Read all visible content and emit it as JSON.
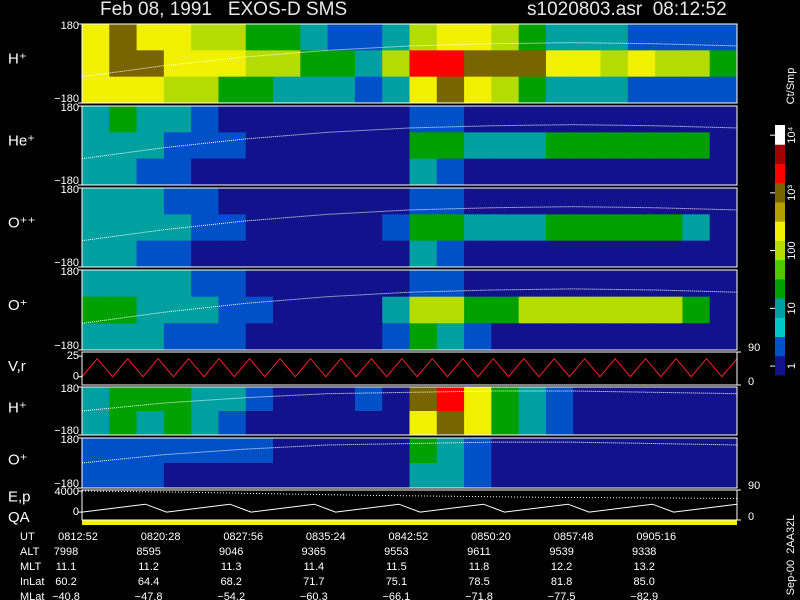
{
  "chart_data": {
    "type": "spectrogram",
    "title": "Feb 08, 1991   EXOS-D SMS",
    "subtitle": "s1020803.asr  08:12:52",
    "colorbar_label": "Ct/Smp",
    "footer_code": "Sep-00  2AA32L",
    "log": true,
    "clim": [
      0.7,
      15000
    ],
    "cticks": [
      1,
      10,
      100,
      {
        "value": 1000,
        "label": "10³"
      },
      {
        "value": 10000,
        "label": "10⁴"
      }
    ],
    "colormap": [
      "#12128c",
      "#0050c8",
      "#00c8c8",
      "#00a0a0",
      "#00a000",
      "#50c800",
      "#b4dc00",
      "#f0f000",
      "#b4a000",
      "#786400",
      "#ff0000",
      "#a00000",
      "#ffffff"
    ],
    "panels": [
      {
        "type": "heatmap",
        "label": "H⁺",
        "ylim": [
          -180,
          180
        ],
        "yticks": [
          {
            "value": -180,
            "label": "−180"
          },
          180
        ],
        "values": [
          [
            300,
            1000,
            300,
            300,
            100,
            100,
            30,
            30,
            10,
            3,
            3,
            10,
            100,
            300,
            300,
            100,
            30,
            10,
            10,
            10,
            3,
            3,
            3,
            3
          ],
          [
            300,
            1000,
            1000,
            300,
            300,
            300,
            100,
            100,
            30,
            30,
            10,
            100,
            3000,
            3000,
            1000,
            1000,
            1000,
            300,
            300,
            100,
            300,
            100,
            100,
            30
          ],
          [
            300,
            300,
            300,
            100,
            100,
            30,
            30,
            10,
            10,
            10,
            3,
            10,
            300,
            1000,
            300,
            100,
            30,
            10,
            10,
            10,
            3,
            3,
            3,
            3
          ]
        ],
        "curve": [
          -60,
          -10,
          30,
          60,
          80,
          90,
          95,
          90,
          80
        ]
      },
      {
        "type": "heatmap",
        "label": "He⁺",
        "ylim": [
          -180,
          180
        ],
        "yticks": [
          {
            "value": -180,
            "label": "−180"
          },
          180
        ],
        "values": [
          [
            10,
            30,
            10,
            10,
            3,
            1,
            1,
            1,
            1,
            1,
            1,
            1,
            3,
            3,
            1,
            1,
            1,
            1,
            1,
            1,
            1,
            1,
            1,
            1
          ],
          [
            10,
            10,
            10,
            3,
            3,
            3,
            1,
            1,
            1,
            1,
            1,
            1,
            30,
            30,
            10,
            10,
            10,
            30,
            30,
            30,
            30,
            30,
            30,
            1
          ],
          [
            10,
            10,
            3,
            3,
            1,
            1,
            1,
            1,
            1,
            1,
            1,
            1,
            10,
            3,
            1,
            1,
            1,
            1,
            1,
            1,
            1,
            1,
            1,
            1
          ]
        ],
        "curve": [
          -60,
          -10,
          30,
          60,
          80,
          90,
          95,
          90,
          80
        ]
      },
      {
        "type": "heatmap",
        "label": "O⁺⁺",
        "ylim": [
          -180,
          180
        ],
        "yticks": [
          {
            "value": -180,
            "label": "−180"
          },
          180
        ],
        "values": [
          [
            10,
            10,
            10,
            3,
            3,
            1,
            1,
            1,
            1,
            1,
            1,
            1,
            3,
            3,
            1,
            1,
            1,
            1,
            1,
            1,
            1,
            1,
            1,
            1
          ],
          [
            10,
            10,
            10,
            10,
            3,
            3,
            1,
            1,
            1,
            1,
            1,
            3,
            30,
            30,
            10,
            10,
            10,
            30,
            30,
            30,
            30,
            30,
            10,
            1
          ],
          [
            10,
            10,
            3,
            3,
            1,
            1,
            1,
            1,
            1,
            1,
            1,
            1,
            10,
            3,
            1,
            1,
            1,
            1,
            1,
            1,
            1,
            1,
            1,
            1
          ]
        ],
        "curve": [
          -60,
          -10,
          30,
          60,
          80,
          90,
          95,
          90,
          80
        ]
      },
      {
        "type": "heatmap",
        "label": "O⁺",
        "ylim": [
          -180,
          180
        ],
        "yticks": [
          {
            "value": -180,
            "label": "−180"
          },
          180
        ],
        "values": [
          [
            10,
            10,
            10,
            10,
            3,
            3,
            1,
            1,
            1,
            1,
            1,
            1,
            3,
            3,
            1,
            1,
            1,
            1,
            1,
            1,
            1,
            1,
            1,
            1
          ],
          [
            30,
            30,
            10,
            10,
            10,
            3,
            3,
            1,
            1,
            1,
            1,
            10,
            100,
            100,
            30,
            30,
            100,
            100,
            100,
            100,
            100,
            100,
            30,
            1
          ],
          [
            10,
            10,
            10,
            3,
            3,
            3,
            1,
            1,
            1,
            1,
            1,
            3,
            30,
            10,
            3,
            1,
            1,
            1,
            1,
            1,
            1,
            1,
            1,
            1
          ]
        ],
        "curve": [
          -60,
          -10,
          30,
          60,
          80,
          90,
          95,
          90,
          80
        ]
      },
      {
        "type": "line",
        "label": "V,r",
        "ylim": [
          -10,
          30
        ],
        "yticks": [
          0,
          25
        ],
        "y2lim": [
          0,
          90
        ],
        "y2ticks": [
          0,
          90
        ],
        "color": "#ff2020",
        "values": [
          0,
          22,
          0,
          22,
          0,
          22,
          0,
          22,
          0,
          22,
          0,
          22,
          0,
          22,
          0,
          22,
          0,
          22,
          0,
          22,
          0,
          22,
          0,
          22,
          0,
          22,
          0,
          22,
          0,
          22,
          0,
          22,
          0,
          22,
          0,
          22,
          0,
          22,
          0,
          22,
          0,
          22,
          0,
          22
        ]
      },
      {
        "type": "heatmap",
        "label": "H⁺",
        "ylim": [
          -180,
          180
        ],
        "yticks": [
          {
            "value": -180,
            "label": "−180"
          },
          180
        ],
        "values": [
          [
            10,
            30,
            30,
            30,
            10,
            10,
            3,
            1,
            1,
            1,
            3,
            1,
            1000,
            3000,
            300,
            30,
            10,
            3,
            1,
            1,
            1,
            1,
            1,
            1
          ],
          [
            10,
            30,
            10,
            30,
            10,
            3,
            1,
            1,
            1,
            1,
            1,
            1,
            300,
            1000,
            300,
            30,
            10,
            3,
            1,
            1,
            1,
            1,
            1,
            1
          ]
        ],
        "curve": [
          0,
          60,
          100,
          130,
          140,
          150,
          150,
          140,
          130
        ]
      },
      {
        "type": "heatmap",
        "label": "O⁺",
        "ylim": [
          -180,
          180
        ],
        "yticks": [
          {
            "value": -180,
            "label": "−180"
          },
          180
        ],
        "values": [
          [
            3,
            3,
            3,
            3,
            3,
            3,
            3,
            1,
            1,
            1,
            1,
            1,
            30,
            10,
            3,
            1,
            1,
            1,
            1,
            1,
            1,
            1,
            1,
            1
          ],
          [
            3,
            3,
            3,
            1,
            1,
            1,
            1,
            1,
            1,
            1,
            1,
            1,
            10,
            10,
            3,
            1,
            1,
            1,
            1,
            1,
            1,
            1,
            1,
            1
          ]
        ],
        "curve": [
          0,
          60,
          100,
          130,
          140,
          150,
          150,
          140,
          130
        ]
      },
      {
        "type": "line",
        "label": "E,p",
        "label2": "QA",
        "ylim": [
          -1500,
          4200
        ],
        "yticks": [
          0,
          4000
        ],
        "y2lim": [
          0,
          90
        ],
        "y2ticks": [
          0,
          90
        ],
        "color": "#ffffff",
        "values": [
          0,
          500,
          1000,
          1500,
          0,
          500,
          1000,
          1500,
          0,
          500,
          1000,
          1500,
          0,
          500,
          1000,
          1500,
          0,
          500,
          1000,
          1500,
          0,
          500,
          1000,
          1500,
          0,
          500,
          1000,
          1500,
          0,
          500,
          1000,
          1500
        ],
        "values2": [
          4000,
          3800,
          3500,
          3200,
          3000,
          2800,
          2700,
          2600
        ]
      }
    ],
    "ephemeris": {
      "labels": [
        "UT",
        "ALT",
        "MLT",
        "InLat",
        "MLat"
      ],
      "rows": [
        [
          "0812:52",
          "0820:28",
          "0827:56",
          "0835:24",
          "0842:52",
          "0850:20",
          "0857:48",
          "0905:16"
        ],
        [
          "7998",
          "8595",
          "9046",
          "9365",
          "9553",
          "9611",
          "9539",
          "9338"
        ],
        [
          "11.1",
          "11.2",
          "11.3",
          "11.4",
          "11.5",
          "11.8",
          "12.2",
          "13.2"
        ],
        [
          "60.2",
          "64.4",
          "68.2",
          "71.7",
          "75.1",
          "78.5",
          "81.8",
          "85.0"
        ],
        [
          "−40.8",
          "−47.8",
          "−54.2",
          "−60.3",
          "−66.1",
          "−71.8",
          "−77.5",
          "−82.9"
        ]
      ]
    }
  }
}
